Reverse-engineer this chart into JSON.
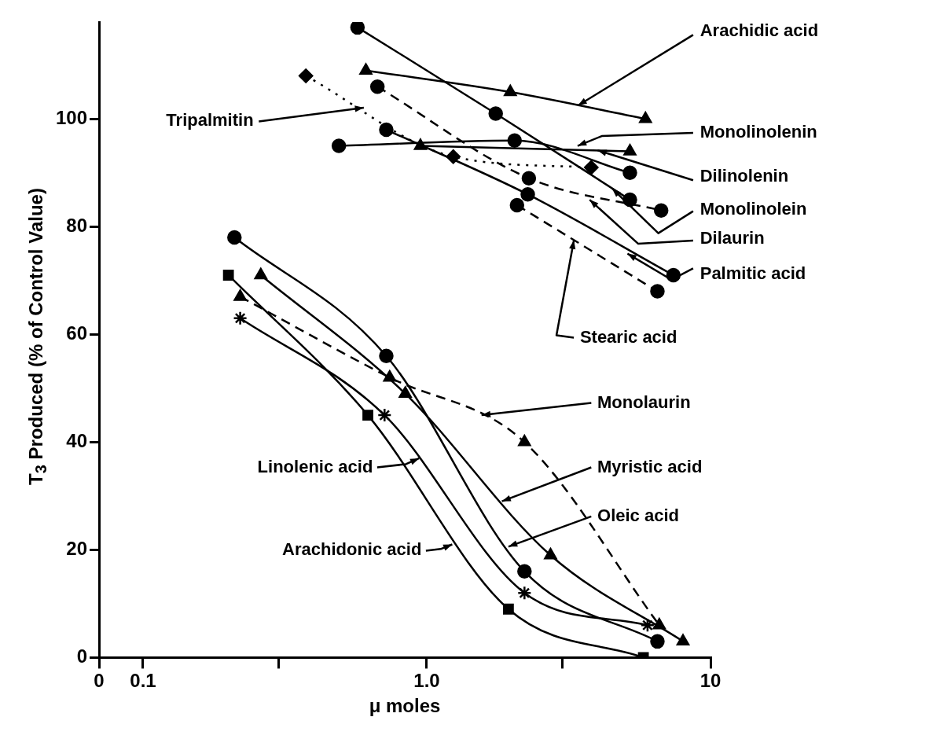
{
  "chart_data": {
    "type": "line",
    "xlabel": "μ moles",
    "ylabel": "T$_{3}$ Produced (% of Control Value)",
    "log": "x",
    "xlim": [
      0.07,
      10
    ],
    "xticks": [
      {
        "value": 0.07,
        "label": "0"
      },
      0.1,
      {
        "value": 0.3,
        "label": null
      },
      {
        "value": 1,
        "label": "1.0"
      },
      {
        "value": 3,
        "label": null
      },
      10
    ],
    "ylim": [
      0,
      118
    ],
    "yticks": [
      0,
      20,
      40,
      60,
      80,
      100
    ],
    "grid": false,
    "legend": false,
    "series": [
      {
        "color": "#000000",
        "marker": "triangle",
        "line_style": "solid",
        "x": [
          0.61,
          1.97,
          5.9
        ],
        "values": [
          109,
          105,
          100
        ]
      },
      {
        "color": "#000000",
        "marker": "circle",
        "line_style": "solid",
        "x": [
          0.49,
          2.04,
          5.2
        ],
        "values": [
          95,
          96,
          90
        ]
      },
      {
        "color": "#000000",
        "marker": "triangle",
        "line_style": "solid",
        "x": [
          0.95,
          5.2
        ],
        "values": [
          95,
          94
        ]
      },
      {
        "color": "#000000",
        "marker": "circle",
        "line_style": "solid",
        "x": [
          0.57,
          1.75,
          5.2
        ],
        "values": [
          117,
          101,
          85
        ]
      },
      {
        "color": "#000000",
        "marker": "circle",
        "line_style": "dashed",
        "x": [
          0.67,
          2.29,
          6.7
        ],
        "values": [
          106,
          89,
          83
        ]
      },
      {
        "color": "#000000",
        "marker": "circle",
        "line_style": "solid",
        "x": [
          0.72,
          2.27,
          7.4
        ],
        "values": [
          98,
          86,
          71
        ]
      },
      {
        "color": "#000000",
        "marker": "circle",
        "line_style": "dashed",
        "x": [
          2.08,
          6.5
        ],
        "values": [
          84,
          68
        ]
      },
      {
        "color": "#000000",
        "marker": "diamond",
        "line_style": "dotted",
        "x": [
          0.375,
          1.24,
          3.8
        ],
        "values": [
          108,
          93,
          91
        ]
      },
      {
        "color": "#000000",
        "marker": "triangle",
        "line_style": "dashed",
        "x": [
          0.22,
          0.74,
          2.21,
          6.6
        ],
        "values": [
          67,
          52,
          40,
          6
        ]
      },
      {
        "color": "#000000",
        "marker": "triangle",
        "line_style": "solid",
        "x": [
          0.26,
          0.84,
          2.73,
          8
        ],
        "values": [
          71,
          49,
          19,
          3
        ]
      },
      {
        "color": "#000000",
        "marker": "circle",
        "line_style": "solid",
        "x": [
          0.21,
          0.72,
          2.21,
          6.5
        ],
        "values": [
          78,
          56,
          16,
          3
        ]
      },
      {
        "color": "#000000",
        "marker": "cross",
        "line_style": "solid",
        "x": [
          0.22,
          0.71,
          2.21,
          6
        ],
        "values": [
          63,
          45,
          12,
          6
        ]
      },
      {
        "color": "#000000",
        "marker": "square",
        "line_style": "solid",
        "x": [
          0.2,
          0.62,
          1.94,
          5.8
        ],
        "values": [
          71,
          45,
          9,
          0
        ]
      }
    ],
    "annotations": [
      {
        "text": "Arachidic acid",
        "x": 3.41,
        "y": 102.5
      },
      {
        "text": "Monolinolenin",
        "x": 3.4,
        "y": 95
      },
      {
        "text": "Dilinolenin",
        "x": 4,
        "y": 94.2
      },
      {
        "text": "Monolinolein",
        "x": 4.5,
        "y": 87.1
      },
      {
        "text": "Dilaurin",
        "x": 3.75,
        "y": 85
      },
      {
        "text": "Palmitic acid",
        "x": 5.1,
        "y": 75
      },
      {
        "text": "Stearic acid",
        "x": 3.3,
        "y": 77.5
      },
      {
        "text": "Tripalmitin",
        "x": 0.6,
        "y": 102.1
      },
      {
        "text": "Monolaurin",
        "x": 1.56,
        "y": 45
      },
      {
        "text": "Myristic acid",
        "x": 1.84,
        "y": 29
      },
      {
        "text": "Oleic acid",
        "x": 1.94,
        "y": 20.6
      },
      {
        "text": "Linolenic acid",
        "x": 0.94,
        "y": 37
      },
      {
        "text": "Arachidonic acid",
        "x": 1.23,
        "y": 21
      }
    ]
  }
}
